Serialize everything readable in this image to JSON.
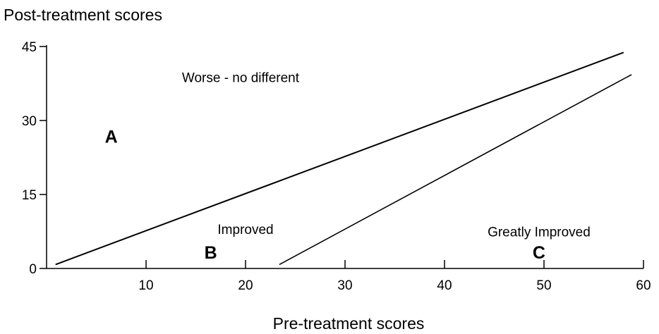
{
  "chart_data": {
    "type": "line",
    "ylabel": "Post-treatment scores",
    "xlabel": "Pre-treatment scores",
    "xlim": [
      0,
      60
    ],
    "ylim": [
      0,
      45
    ],
    "x_ticks": [
      10,
      20,
      30,
      40,
      50,
      60
    ],
    "y_ticks": [
      0,
      15,
      30,
      45
    ],
    "grid": false,
    "series": [
      {
        "x": [
          0.9,
          58
        ],
        "y": [
          0.8,
          43.8
        ]
      },
      {
        "x": [
          23.4,
          58.8
        ],
        "y": [
          0.8,
          39.3
        ]
      }
    ],
    "annotations": [
      {
        "text": "Worse - no different",
        "x": 19.5,
        "y": 37.8,
        "style": "label"
      },
      {
        "text": "A",
        "x": 6.5,
        "y": 25.5,
        "style": "letter"
      },
      {
        "text": "Improved",
        "x": 20,
        "y": 7,
        "style": "label"
      },
      {
        "text": "B",
        "x": 16.5,
        "y": 2,
        "style": "letter"
      },
      {
        "text": "Greatly Improved",
        "x": 49.5,
        "y": 6.5,
        "style": "label"
      },
      {
        "text": "C",
        "x": 49.5,
        "y": 2,
        "style": "letter"
      }
    ]
  }
}
